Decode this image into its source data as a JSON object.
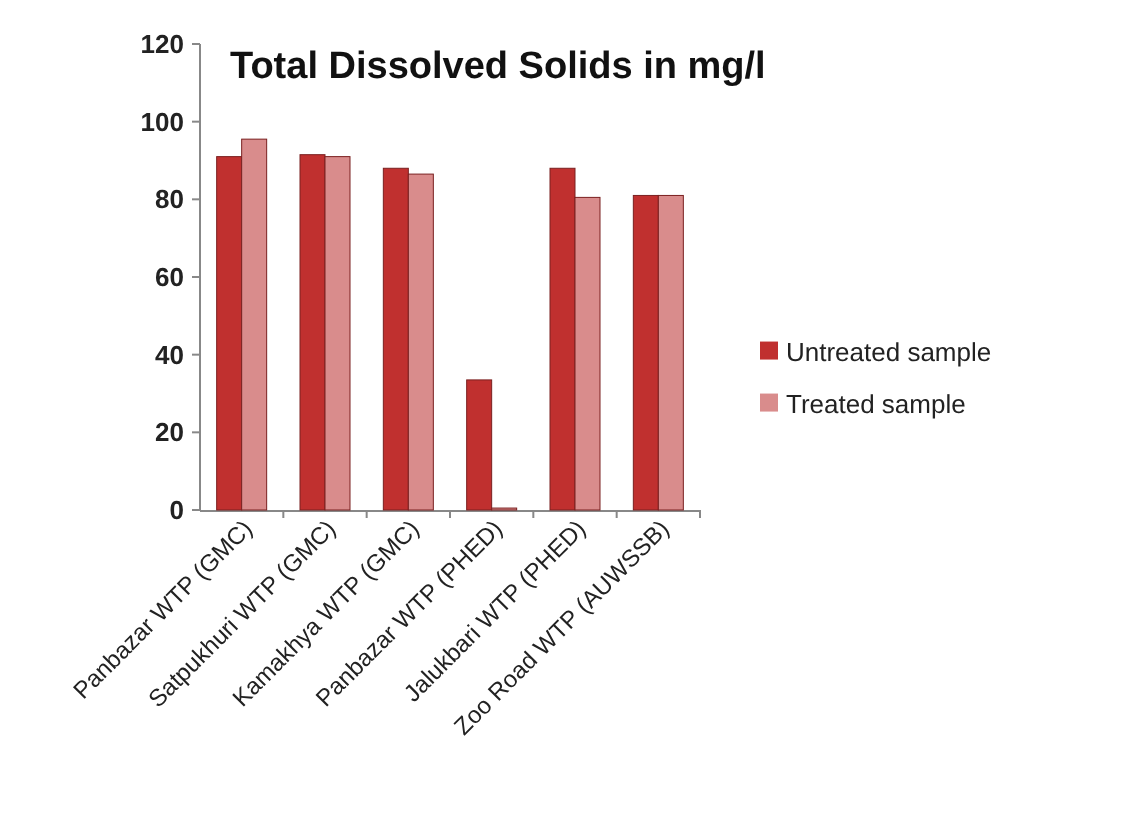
{
  "chart_data": {
    "type": "bar",
    "title": "Total Dissolved Solids in mg/l",
    "categories": [
      "Panbazar WTP (GMC)",
      "Satpukhuri WTP (GMC)",
      "Kamakhya WTP (GMC)",
      "Panbazar WTP (PHED)",
      "Jalukbari WTP (PHED)",
      "Zoo Road WTP (AUWSSB)"
    ],
    "series": [
      {
        "name": "Untreated sample",
        "color": "#c0302f",
        "values": [
          91,
          91.5,
          88,
          33.5,
          88,
          81
        ]
      },
      {
        "name": "Treated sample",
        "color": "#d98c8c",
        "values": [
          95.5,
          91,
          86.5,
          0.5,
          80.5,
          81
        ]
      }
    ],
    "ylim": [
      0,
      120
    ],
    "yticks": [
      0,
      20,
      40,
      60,
      80,
      100,
      120
    ],
    "grid": false,
    "legend": "right"
  }
}
